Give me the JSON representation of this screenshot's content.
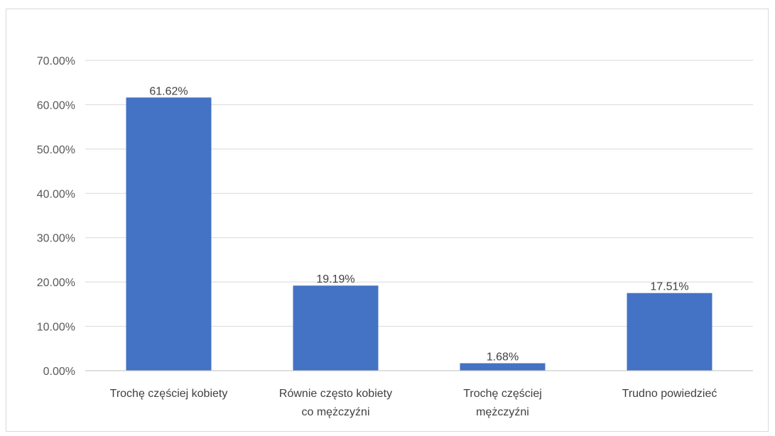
{
  "chart_data": {
    "type": "bar",
    "title": "",
    "xlabel": "",
    "ylabel": "",
    "categories": [
      [
        "Trochę częściej kobiety"
      ],
      [
        "Równie często kobiety",
        "co mężczyźni"
      ],
      [
        "Trochę częściej",
        "mężczyźni"
      ],
      [
        "Trudno powiedzieć"
      ]
    ],
    "values": [
      61.62,
      19.19,
      1.68,
      17.51
    ],
    "value_labels": [
      "61.62%",
      "19.19%",
      "1.68%",
      "17.51%"
    ],
    "ylim": [
      0,
      70
    ],
    "yticks": [
      0,
      10,
      20,
      30,
      40,
      50,
      60,
      70
    ],
    "ytick_labels": [
      "0.00%",
      "10.00%",
      "20.00%",
      "30.00%",
      "40.00%",
      "50.00%",
      "60.00%",
      "70.00%"
    ],
    "grid": true,
    "legend": "none",
    "colors": {
      "bar": "#4472C4",
      "grid": "#d9d9d9",
      "axis": "#bfbfbf",
      "frame": "#d9d9d9"
    }
  }
}
